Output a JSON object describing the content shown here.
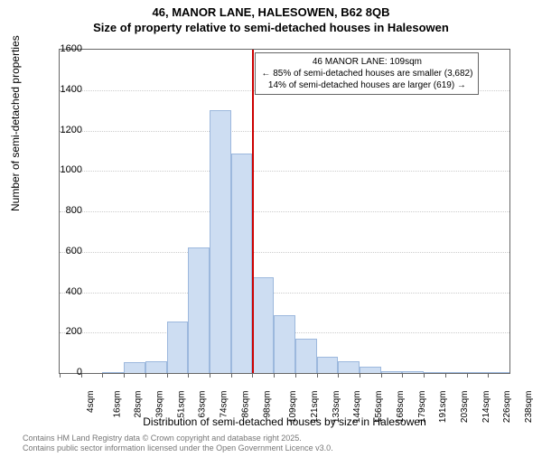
{
  "title": {
    "line1": "46, MANOR LANE, HALESOWEN, B62 8QB",
    "line2": "Size of property relative to semi-detached houses in Halesowen"
  },
  "yaxis": {
    "title": "Number of semi-detached properties",
    "min": 0,
    "max": 1600,
    "step": 200,
    "grid_color": "#cccccc",
    "label_fontsize": 11
  },
  "xaxis": {
    "title": "Distribution of semi-detached houses by size in Halesowen",
    "categories": [
      "4sqm",
      "16sqm",
      "28sqm",
      "39sqm",
      "51sqm",
      "63sqm",
      "74sqm",
      "86sqm",
      "98sqm",
      "109sqm",
      "121sqm",
      "133sqm",
      "144sqm",
      "156sqm",
      "168sqm",
      "179sqm",
      "191sqm",
      "203sqm",
      "214sqm",
      "226sqm",
      "238sqm"
    ],
    "label_fontsize": 10
  },
  "histogram": {
    "type": "histogram",
    "values": [
      0,
      0,
      5,
      55,
      60,
      255,
      620,
      1300,
      1085,
      475,
      285,
      170,
      80,
      60,
      30,
      10,
      10,
      5,
      5,
      5,
      5
    ],
    "bar_fill": "#cdddf2",
    "bar_border": "#9cb8dd",
    "background_color": "#ffffff"
  },
  "reference": {
    "x_index": 9,
    "color": "#cc0000",
    "box": {
      "line1": "46 MANOR LANE: 109sqm",
      "line2": "← 85% of semi-detached houses are smaller (3,682)",
      "line3": "14% of semi-detached houses are larger (619) →"
    }
  },
  "footer": {
    "line1": "Contains HM Land Registry data © Crown copyright and database right 2025.",
    "line2": "Contains public sector information licensed under the Open Government Licence v3.0."
  }
}
